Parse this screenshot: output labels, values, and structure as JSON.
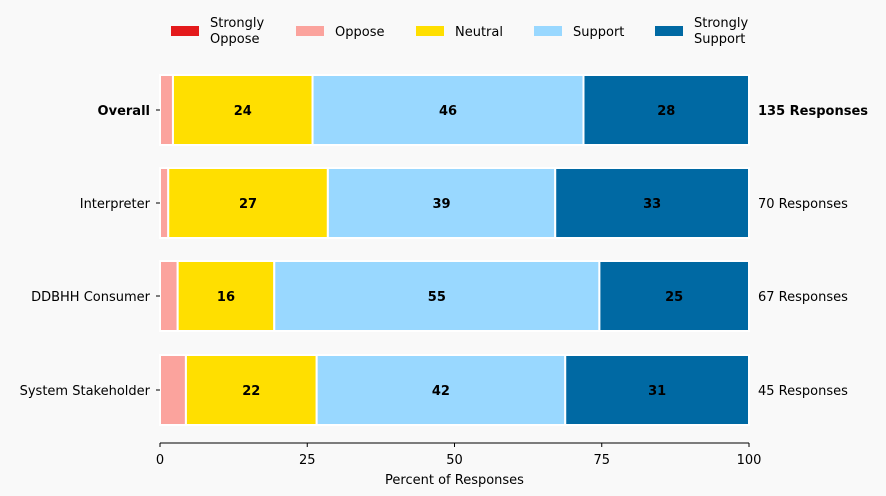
{
  "chart_data": {
    "type": "bar",
    "orientation": "horizontal-stacked",
    "xlabel": "Percent of Responses",
    "xlim": [
      0,
      100
    ],
    "xticks": [
      "0",
      "25",
      "50",
      "75",
      "100"
    ],
    "xtick_values": [
      0,
      25,
      50,
      75,
      100
    ],
    "legend_placement": "top",
    "categories": [
      "Overall",
      "Interpreter",
      "DDBHH Consumer",
      "System Stakeholder"
    ],
    "responses": [
      "135 Responses",
      "70 Responses",
      "67 Responses",
      "45 Responses"
    ],
    "series": [
      {
        "name": "Strongly Oppose",
        "legend": [
          "Strongly",
          "Oppose"
        ],
        "color": "#e41a1c",
        "values": [
          0,
          0,
          0,
          0
        ],
        "labels": [
          "",
          "",
          "",
          ""
        ],
        "label_color": "#000000"
      },
      {
        "name": "Oppose",
        "legend": [
          "Oppose"
        ],
        "color": "#fba39d",
        "values": [
          2.2,
          1.4,
          3.0,
          4.4
        ],
        "labels": [
          "",
          "",
          "",
          ""
        ],
        "label_color": "#000000"
      },
      {
        "name": "Neutral",
        "legend": [
          "Neutral"
        ],
        "color": "#ffdf00",
        "values": [
          23.7,
          27.1,
          16.4,
          22.2
        ],
        "labels": [
          "24",
          "27",
          "16",
          "22"
        ],
        "label_color": "#000000"
      },
      {
        "name": "Support",
        "legend": [
          "Support"
        ],
        "color": "#99d8ff",
        "values": [
          46.0,
          38.6,
          55.2,
          42.2
        ],
        "labels": [
          "46",
          "39",
          "55",
          "42"
        ],
        "label_color": "#000000"
      },
      {
        "name": "Strongly Support",
        "legend": [
          "Strongly",
          "Support"
        ],
        "color": "#0069a3",
        "values": [
          28.1,
          32.9,
          25.4,
          31.2
        ],
        "labels": [
          "28",
          "33",
          "25",
          "31"
        ],
        "label_color": "#ffffff"
      }
    ]
  }
}
